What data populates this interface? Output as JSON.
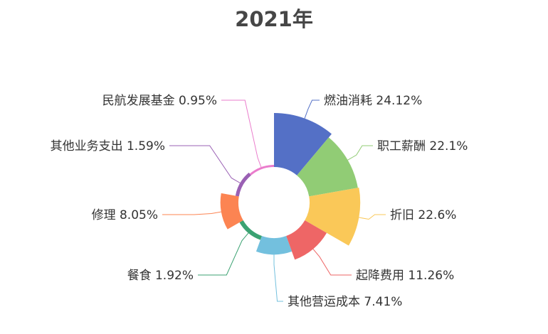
{
  "chart_data": {
    "type": "pie",
    "variant": "nightingale-rose",
    "title": "2021年",
    "slices": [
      {
        "name": "燃油消耗",
        "value": 24.12,
        "label": "燃油消耗 24.12%",
        "color": "#5470c6"
      },
      {
        "name": "职工薪酬",
        "value": 22.1,
        "label": "职工薪酬 22.1%",
        "color": "#91cc75"
      },
      {
        "name": "折旧",
        "value": 22.6,
        "label": "折旧 22.6%",
        "color": "#fac858"
      },
      {
        "name": "起降费用",
        "value": 11.26,
        "label": "起降费用 11.26%",
        "color": "#ee6666"
      },
      {
        "name": "其他营运成本",
        "value": 7.41,
        "label": "其他营运成本 7.41%",
        "color": "#73c0de"
      },
      {
        "name": "餐食",
        "value": 1.92,
        "label": "餐食 1.92%",
        "color": "#3ba272"
      },
      {
        "name": "修理",
        "value": 8.05,
        "label": "修理 8.05%",
        "color": "#fc8452"
      },
      {
        "name": "其他业务支出",
        "value": 1.59,
        "label": "其他业务支出 1.59%",
        "color": "#9a60b4"
      },
      {
        "name": "民航发展基金",
        "value": 0.95,
        "label": "民航发展基金 0.95%",
        "color": "#ea7ccc"
      }
    ]
  }
}
